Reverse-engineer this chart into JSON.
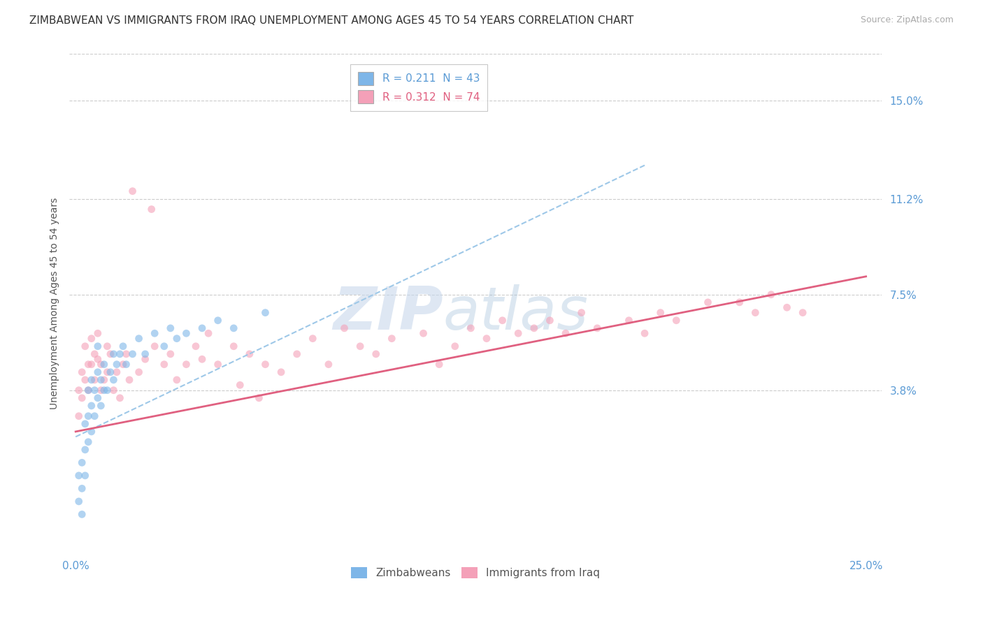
{
  "title": "ZIMBABWEAN VS IMMIGRANTS FROM IRAQ UNEMPLOYMENT AMONG AGES 45 TO 54 YEARS CORRELATION CHART",
  "source": "Source: ZipAtlas.com",
  "ylabel": "Unemployment Among Ages 45 to 54 years",
  "xlim": [
    -0.002,
    0.255
  ],
  "ylim": [
    -0.025,
    0.168
  ],
  "yticks": [
    0.038,
    0.075,
    0.112,
    0.15
  ],
  "ytick_labels": [
    "3.8%",
    "7.5%",
    "11.2%",
    "15.0%"
  ],
  "xticks": [
    0.0,
    0.25
  ],
  "xtick_labels": [
    "0.0%",
    "25.0%"
  ],
  "legend_entries": [
    {
      "label_r": "R = ",
      "r_val": "0.211",
      "label_n": "  N = ",
      "n_val": "43",
      "color": "#7eb6e8"
    },
    {
      "label_r": "R = ",
      "r_val": "0.312",
      "label_n": "  N = ",
      "n_val": "74",
      "color": "#f4a0b8"
    }
  ],
  "legend_labels": [
    "Zimbabweans",
    "Immigrants from Iraq"
  ],
  "zimbabweans_x": [
    0.001,
    0.001,
    0.002,
    0.002,
    0.002,
    0.003,
    0.003,
    0.003,
    0.004,
    0.004,
    0.004,
    0.005,
    0.005,
    0.005,
    0.006,
    0.006,
    0.007,
    0.007,
    0.007,
    0.008,
    0.008,
    0.009,
    0.009,
    0.01,
    0.011,
    0.012,
    0.012,
    0.013,
    0.014,
    0.015,
    0.016,
    0.018,
    0.02,
    0.022,
    0.025,
    0.028,
    0.03,
    0.032,
    0.035,
    0.04,
    0.045,
    0.05,
    0.06
  ],
  "zimbabweans_y": [
    0.005,
    -0.005,
    0.01,
    0.0,
    -0.01,
    0.025,
    0.015,
    0.005,
    0.038,
    0.028,
    0.018,
    0.042,
    0.032,
    0.022,
    0.038,
    0.028,
    0.055,
    0.045,
    0.035,
    0.042,
    0.032,
    0.048,
    0.038,
    0.038,
    0.045,
    0.052,
    0.042,
    0.048,
    0.052,
    0.055,
    0.048,
    0.052,
    0.058,
    0.052,
    0.06,
    0.055,
    0.062,
    0.058,
    0.06,
    0.062,
    0.065,
    0.062,
    0.068
  ],
  "iraq_x": [
    0.001,
    0.001,
    0.002,
    0.002,
    0.003,
    0.003,
    0.004,
    0.004,
    0.005,
    0.005,
    0.006,
    0.006,
    0.007,
    0.007,
    0.008,
    0.008,
    0.009,
    0.01,
    0.01,
    0.011,
    0.012,
    0.013,
    0.014,
    0.015,
    0.016,
    0.017,
    0.018,
    0.02,
    0.022,
    0.024,
    0.025,
    0.028,
    0.03,
    0.032,
    0.035,
    0.038,
    0.04,
    0.042,
    0.045,
    0.05,
    0.052,
    0.055,
    0.058,
    0.06,
    0.065,
    0.07,
    0.075,
    0.08,
    0.085,
    0.09,
    0.095,
    0.1,
    0.11,
    0.115,
    0.12,
    0.125,
    0.13,
    0.135,
    0.14,
    0.145,
    0.15,
    0.155,
    0.16,
    0.165,
    0.175,
    0.18,
    0.185,
    0.19,
    0.2,
    0.21,
    0.215,
    0.22,
    0.225,
    0.23
  ],
  "iraq_y": [
    0.038,
    0.028,
    0.045,
    0.035,
    0.055,
    0.042,
    0.048,
    0.038,
    0.058,
    0.048,
    0.052,
    0.042,
    0.06,
    0.05,
    0.048,
    0.038,
    0.042,
    0.055,
    0.045,
    0.052,
    0.038,
    0.045,
    0.035,
    0.048,
    0.052,
    0.042,
    0.115,
    0.045,
    0.05,
    0.108,
    0.055,
    0.048,
    0.052,
    0.042,
    0.048,
    0.055,
    0.05,
    0.06,
    0.048,
    0.055,
    0.04,
    0.052,
    0.035,
    0.048,
    0.045,
    0.052,
    0.058,
    0.048,
    0.062,
    0.055,
    0.052,
    0.058,
    0.06,
    0.048,
    0.055,
    0.062,
    0.058,
    0.065,
    0.06,
    0.062,
    0.065,
    0.06,
    0.068,
    0.062,
    0.065,
    0.06,
    0.068,
    0.065,
    0.072,
    0.072,
    0.068,
    0.075,
    0.07,
    0.068
  ],
  "trend_blue_x0": 0.0,
  "trend_blue_y0": 0.02,
  "trend_blue_x1": 0.18,
  "trend_blue_y1": 0.125,
  "trend_pink_x0": 0.0,
  "trend_pink_y0": 0.022,
  "trend_pink_x1": 0.25,
  "trend_pink_y1": 0.082,
  "watermark_zip": "ZIP",
  "watermark_atlas": "atlas",
  "background_color": "#ffffff",
  "scatter_size": 60,
  "scatter_alpha": 0.6,
  "blue_color": "#7eb6e8",
  "pink_color": "#f4a0b8",
  "trend_blue_color": "#9ec8e8",
  "trend_pink_color": "#e06080",
  "tick_color": "#5b9bd5",
  "title_fontsize": 11,
  "axis_label_fontsize": 10,
  "tick_fontsize": 11,
  "legend_fontsize": 11,
  "grid_color": "#cccccc"
}
